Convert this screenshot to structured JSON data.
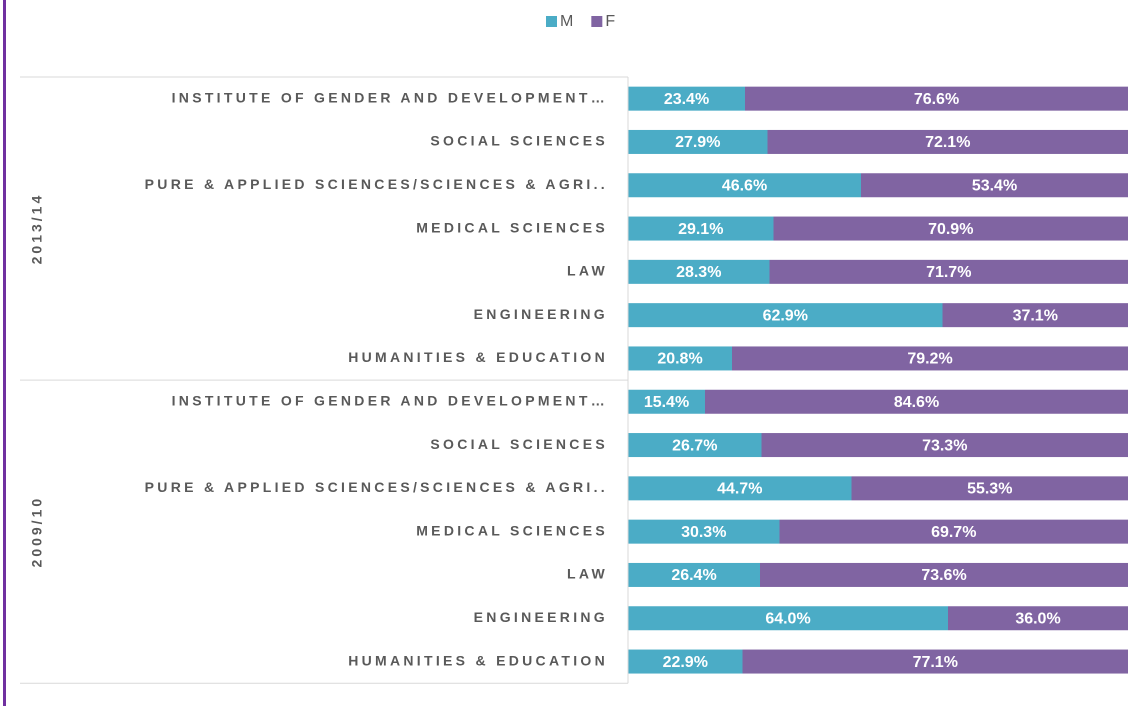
{
  "chart_data": {
    "type": "bar",
    "orientation": "horizontal",
    "stacked": true,
    "xlim": [
      0,
      100
    ],
    "groups": [
      {
        "name": "2013/14",
        "categories": [
          "INSTITUTE OF GENDER AND DEVELOPMENT…",
          "SOCIAL SCIENCES",
          "PURE & APPLIED SCIENCES/SCIENCES & AGRI..",
          "MEDICAL SCIENCES",
          "LAW",
          "ENGINEERING",
          "HUMANITIES & EDUCATION"
        ]
      },
      {
        "name": "2009/10",
        "categories": [
          "INSTITUTE OF GENDER AND DEVELOPMENT…",
          "SOCIAL SCIENCES",
          "PURE & APPLIED SCIENCES/SCIENCES & AGRI..",
          "MEDICAL SCIENCES",
          "LAW",
          "ENGINEERING",
          "HUMANITIES & EDUCATION"
        ]
      }
    ],
    "series": [
      {
        "name": "M",
        "color": "#4bacc6",
        "values": [
          [
            23.4,
            27.9,
            46.6,
            29.1,
            28.3,
            62.9,
            20.8
          ],
          [
            15.4,
            26.7,
            44.7,
            30.3,
            26.4,
            64.0,
            22.9
          ]
        ],
        "value_labels": [
          [
            "23.4%",
            "27.9%",
            "46.6%",
            "29.1%",
            "28.3%",
            "62.9%",
            "20.8%"
          ],
          [
            "15.4%",
            "26.7%",
            "44.7%",
            "30.3%",
            "26.4%",
            "64.0%",
            "22.9%"
          ]
        ]
      },
      {
        "name": "F",
        "color": "#8064a2",
        "values": [
          [
            76.6,
            72.1,
            53.4,
            70.9,
            71.7,
            37.1,
            79.2
          ],
          [
            84.6,
            73.3,
            55.3,
            69.7,
            73.6,
            36.0,
            77.1
          ]
        ],
        "value_labels": [
          [
            "76.6%",
            "72.1%",
            "53.4%",
            "70.9%",
            "71.7%",
            "37.1%",
            "79.2%"
          ],
          [
            "84.6%",
            "73.3%",
            "55.3%",
            "69.7%",
            "73.6%",
            "36.0%",
            "77.1%"
          ]
        ]
      }
    ],
    "legend": "top"
  }
}
